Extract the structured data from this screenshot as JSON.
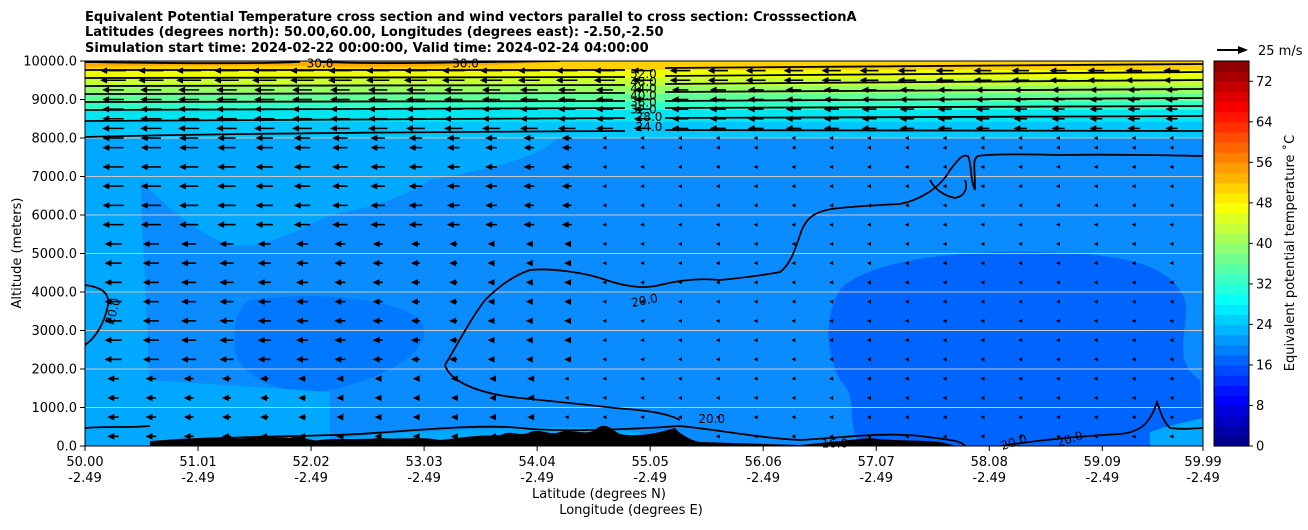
{
  "chart_data": {
    "type": "contour",
    "title_lines": [
      "Equivalent Potential Temperature cross section and wind vectors parallel to cross section: CrosssectionA",
      "Latitudes (degrees north): 50.00,60.00, Longitudes (degrees east): -2.50,-2.50",
      "Simulation start time: 2024-02-22 00:00:00, Valid time: 2024-02-24 04:00:00"
    ],
    "xlabel": "Latitude (degrees N)",
    "xlabel2": "Longitude (degrees E)",
    "ylabel": "Altitude (meters)",
    "xlim": [
      50.0,
      59.99
    ],
    "ylim": [
      0,
      10000
    ],
    "x_ticks": [
      {
        "lat": "50.00",
        "lon": "-2.49"
      },
      {
        "lat": "51.01",
        "lon": "-2.49"
      },
      {
        "lat": "52.02",
        "lon": "-2.49"
      },
      {
        "lat": "53.03",
        "lon": "-2.49"
      },
      {
        "lat": "54.04",
        "lon": "-2.49"
      },
      {
        "lat": "55.05",
        "lon": "-2.49"
      },
      {
        "lat": "56.06",
        "lon": "-2.49"
      },
      {
        "lat": "57.07",
        "lon": "-2.49"
      },
      {
        "lat": "58.08",
        "lon": "-2.49"
      },
      {
        "lat": "59.09",
        "lon": "-2.49"
      },
      {
        "lat": "59.99",
        "lon": "-2.49"
      }
    ],
    "y_ticks": [
      "0.0",
      "1000.0",
      "2000.0",
      "3000.0",
      "4000.0",
      "5000.0",
      "6000.0",
      "7000.0",
      "8000.0",
      "9000.0",
      "10000.0"
    ],
    "colorbar": {
      "label": "Equivalent potential temperature ˚C",
      "min": 0,
      "max": 76,
      "ticks": [
        "0",
        "8",
        "16",
        "24",
        "32",
        "40",
        "48",
        "56",
        "64",
        "72"
      ],
      "colormap": "jet"
    },
    "wind_key": {
      "label": "25 m/s"
    },
    "contour_labels": [
      {
        "text": "52.0",
        "x": 54.99,
        "y": 9660
      },
      {
        "text": "48.0",
        "x": 54.99,
        "y": 9460
      },
      {
        "text": "44.0",
        "x": 54.99,
        "y": 9280
      },
      {
        "text": "40.0",
        "x": 54.99,
        "y": 9100
      },
      {
        "text": "36.0",
        "x": 54.99,
        "y": 8920
      },
      {
        "text": "32.0",
        "x": 54.99,
        "y": 8740
      },
      {
        "text": "28.0",
        "x": 55.04,
        "y": 8540
      },
      {
        "text": "24.0",
        "x": 55.04,
        "y": 8280
      },
      {
        "text": "30.0",
        "x": 52.1,
        "y": 9930
      },
      {
        "text": "30.0",
        "x": 53.4,
        "y": 9930
      },
      {
        "text": "20.0",
        "x": 50.25,
        "y": 3500,
        "rot": -75
      },
      {
        "text": "20.0",
        "x": 55.0,
        "y": 3780,
        "rot": -12
      },
      {
        "text": "20.0",
        "x": 55.6,
        "y": 700
      },
      {
        "text": "16.0",
        "x": 56.7,
        "y": 60
      },
      {
        "text": "20.0",
        "x": 58.3,
        "y": 100,
        "rot": -18
      },
      {
        "text": "20.0",
        "x": 58.8,
        "y": 180,
        "rot": -18
      }
    ]
  }
}
